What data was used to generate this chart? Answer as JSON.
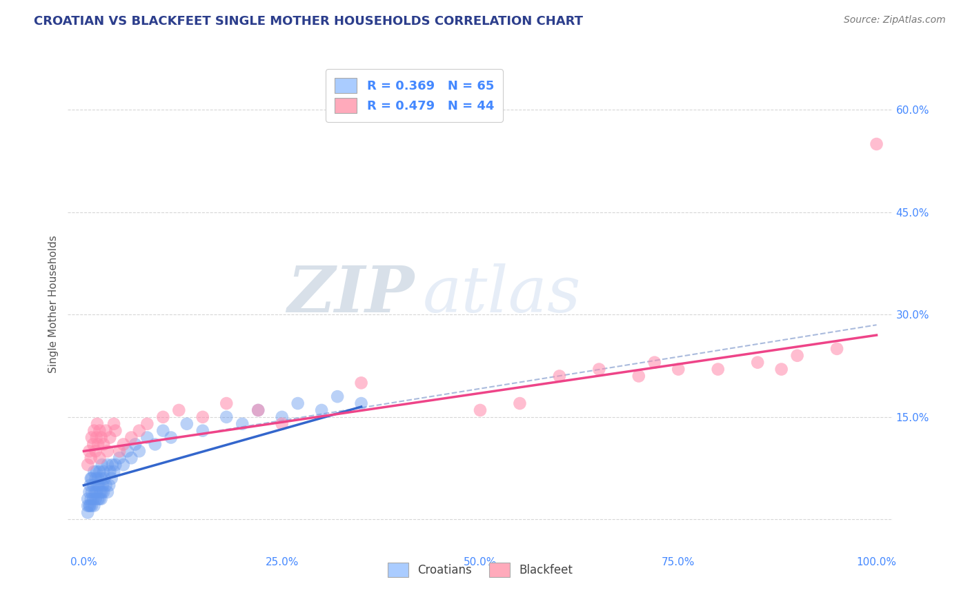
{
  "title": "CROATIAN VS BLACKFEET SINGLE MOTHER HOUSEHOLDS CORRELATION CHART",
  "source": "Source: ZipAtlas.com",
  "ylabel": "Single Mother Households",
  "watermark_zip": "ZIP",
  "watermark_atlas": "atlas",
  "legend_r1": "R = 0.369",
  "legend_n1": "N = 65",
  "legend_r2": "R = 0.479",
  "legend_n2": "N = 44",
  "title_color": "#2c3e8c",
  "source_color": "#777777",
  "axis_label_color": "#555555",
  "tick_color": "#4488ff",
  "legend_text_color": "#4488ff",
  "blue_scatter_color": "#6699ee",
  "pink_scatter_color": "#ff88aa",
  "blue_line_color": "#3366cc",
  "pink_line_color": "#ee4488",
  "dash_line_color": "#aabbdd",
  "grid_color": "#cccccc",
  "background_color": "#ffffff",
  "xlim": [
    -0.02,
    1.02
  ],
  "ylim": [
    -0.05,
    0.68
  ],
  "xticks": [
    0.0,
    0.25,
    0.5,
    0.75,
    1.0
  ],
  "xtick_labels": [
    "0.0%",
    "25.0%",
    "50.0%",
    "75.0%",
    "100.0%"
  ],
  "yticks": [
    0.0,
    0.15,
    0.3,
    0.45,
    0.6
  ],
  "ytick_labels": [
    "",
    "15.0%",
    "30.0%",
    "45.0%",
    "60.0%"
  ],
  "croatian_x": [
    0.005,
    0.005,
    0.005,
    0.007,
    0.007,
    0.008,
    0.008,
    0.009,
    0.009,
    0.01,
    0.01,
    0.01,
    0.012,
    0.012,
    0.013,
    0.013,
    0.014,
    0.015,
    0.015,
    0.016,
    0.016,
    0.017,
    0.018,
    0.018,
    0.019,
    0.02,
    0.02,
    0.021,
    0.022,
    0.022,
    0.023,
    0.023,
    0.024,
    0.025,
    0.025,
    0.026,
    0.028,
    0.03,
    0.03,
    0.032,
    0.033,
    0.035,
    0.036,
    0.038,
    0.04,
    0.045,
    0.05,
    0.055,
    0.06,
    0.065,
    0.07,
    0.08,
    0.09,
    0.1,
    0.11,
    0.13,
    0.15,
    0.18,
    0.2,
    0.22,
    0.25,
    0.27,
    0.3,
    0.32,
    0.35
  ],
  "croatian_y": [
    0.01,
    0.02,
    0.03,
    0.02,
    0.04,
    0.02,
    0.05,
    0.03,
    0.06,
    0.02,
    0.04,
    0.06,
    0.03,
    0.05,
    0.02,
    0.07,
    0.04,
    0.03,
    0.06,
    0.04,
    0.07,
    0.05,
    0.03,
    0.06,
    0.05,
    0.03,
    0.07,
    0.04,
    0.03,
    0.06,
    0.04,
    0.08,
    0.05,
    0.04,
    0.07,
    0.06,
    0.05,
    0.04,
    0.08,
    0.05,
    0.07,
    0.06,
    0.08,
    0.07,
    0.08,
    0.09,
    0.08,
    0.1,
    0.09,
    0.11,
    0.1,
    0.12,
    0.11,
    0.13,
    0.12,
    0.14,
    0.13,
    0.15,
    0.14,
    0.16,
    0.15,
    0.17,
    0.16,
    0.18,
    0.17
  ],
  "blackfeet_x": [
    0.005,
    0.007,
    0.009,
    0.01,
    0.012,
    0.013,
    0.015,
    0.016,
    0.017,
    0.018,
    0.02,
    0.02,
    0.022,
    0.025,
    0.028,
    0.03,
    0.033,
    0.038,
    0.04,
    0.045,
    0.05,
    0.06,
    0.07,
    0.08,
    0.1,
    0.12,
    0.15,
    0.18,
    0.22,
    0.25,
    0.35,
    0.5,
    0.55,
    0.6,
    0.65,
    0.7,
    0.72,
    0.75,
    0.8,
    0.85,
    0.88,
    0.9,
    0.95,
    1.0
  ],
  "blackfeet_y": [
    0.08,
    0.1,
    0.09,
    0.12,
    0.11,
    0.13,
    0.1,
    0.12,
    0.14,
    0.11,
    0.09,
    0.13,
    0.12,
    0.11,
    0.13,
    0.1,
    0.12,
    0.14,
    0.13,
    0.1,
    0.11,
    0.12,
    0.13,
    0.14,
    0.15,
    0.16,
    0.15,
    0.17,
    0.16,
    0.14,
    0.2,
    0.16,
    0.17,
    0.21,
    0.22,
    0.21,
    0.23,
    0.22,
    0.22,
    0.23,
    0.22,
    0.24,
    0.25,
    0.55
  ],
  "blue_trend_x0": 0.0,
  "blue_trend_y0": 0.05,
  "blue_trend_x1": 0.35,
  "blue_trend_y1": 0.165,
  "pink_trend_x0": 0.0,
  "pink_trend_y0": 0.1,
  "pink_trend_x1": 1.0,
  "pink_trend_y1": 0.27,
  "dash_trend_x0": 0.17,
  "dash_trend_y0": 0.13,
  "dash_trend_x1": 1.0,
  "dash_trend_y1": 0.285
}
